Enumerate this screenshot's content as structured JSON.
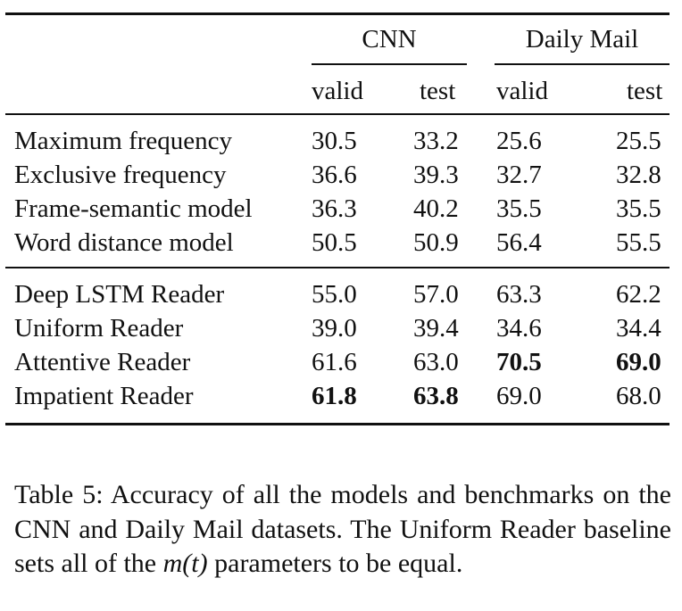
{
  "table": {
    "groups": [
      "CNN",
      "Daily Mail"
    ],
    "subheaders": [
      "valid",
      "test",
      "valid",
      "test"
    ],
    "sections": [
      {
        "rows": [
          {
            "label": "Maximum frequency",
            "values": [
              "30.5",
              "33.2",
              "25.6",
              "25.5"
            ],
            "bold": [
              false,
              false,
              false,
              false
            ]
          },
          {
            "label": "Exclusive frequency",
            "values": [
              "36.6",
              "39.3",
              "32.7",
              "32.8"
            ],
            "bold": [
              false,
              false,
              false,
              false
            ]
          },
          {
            "label": "Frame-semantic model",
            "values": [
              "36.3",
              "40.2",
              "35.5",
              "35.5"
            ],
            "bold": [
              false,
              false,
              false,
              false
            ]
          },
          {
            "label": "Word distance model",
            "values": [
              "50.5",
              "50.9",
              "56.4",
              "55.5"
            ],
            "bold": [
              false,
              false,
              false,
              false
            ]
          }
        ]
      },
      {
        "rows": [
          {
            "label": "Deep LSTM Reader",
            "values": [
              "55.0",
              "57.0",
              "63.3",
              "62.2"
            ],
            "bold": [
              false,
              false,
              false,
              false
            ]
          },
          {
            "label": "Uniform Reader",
            "values": [
              "39.0",
              "39.4",
              "34.6",
              "34.4"
            ],
            "bold": [
              false,
              false,
              false,
              false
            ]
          },
          {
            "label": "Attentive Reader",
            "values": [
              "61.6",
              "63.0",
              "70.5",
              "69.0"
            ],
            "bold": [
              false,
              false,
              true,
              true
            ]
          },
          {
            "label": "Impatient Reader",
            "values": [
              "61.8",
              "63.8",
              "69.0",
              "68.0"
            ],
            "bold": [
              true,
              true,
              false,
              false
            ]
          }
        ]
      }
    ]
  },
  "caption": {
    "prefix": "Table 5: Accuracy of all the models and benchmarks on the CNN and Daily Mail datasets. The Uniform Reader baseline sets all of the ",
    "math": "m(t)",
    "suffix": " parameters to be equal."
  }
}
